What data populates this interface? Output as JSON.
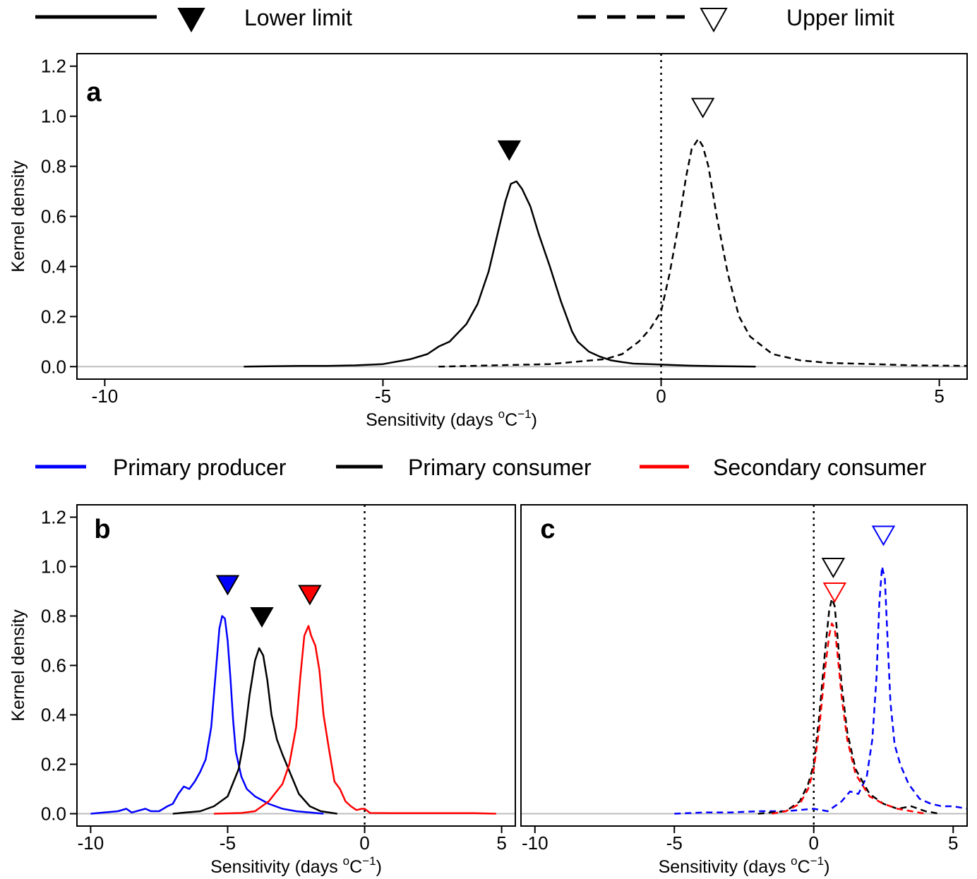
{
  "legend_top": {
    "lower_label": "Lower limit",
    "upper_label": "Upper limit"
  },
  "legend_mid": {
    "producer_label": "Primary producer",
    "consumer_label": "Primary consumer",
    "secondary_label": "Secondary consumer"
  },
  "colors": {
    "primary_producer": "#0000ff",
    "primary_consumer": "#000000",
    "secondary_consumer": "#ff0000",
    "zero_line": "#bebebe"
  },
  "axes": {
    "xlabel_main": "Sensitivity (days ",
    "xlabel_unit_sup_o": "o",
    "xlabel_unit_c": "C",
    "xlabel_unit_sup_exp": "−1",
    "xlabel_close": ")",
    "ylabel": "Kernel density"
  },
  "chart_data": [
    {
      "type": "line",
      "panel": "a",
      "xlim": [
        -10.5,
        5.5
      ],
      "ylim": [
        -0.05,
        1.25
      ],
      "x_ticks": [
        -10,
        -5,
        0,
        5
      ],
      "x_tick_labels": [
        "-10",
        "-5",
        "0",
        "5"
      ],
      "y_ticks": [
        0.0,
        0.2,
        0.4,
        0.6,
        0.8,
        1.0,
        1.2
      ],
      "y_tick_labels": [
        "0.0",
        "0.2",
        "0.4",
        "0.6",
        "0.8",
        "1.0",
        "1.2"
      ],
      "vline_x": 0,
      "series": [
        {
          "name": "Lower limit",
          "style": "solid",
          "color": "#000000",
          "x": [
            -7.5,
            -6.5,
            -6.0,
            -5.5,
            -5.0,
            -4.5,
            -4.2,
            -4.0,
            -3.8,
            -3.5,
            -3.3,
            -3.1,
            -2.95,
            -2.8,
            -2.7,
            -2.6,
            -2.5,
            -2.35,
            -2.2,
            -2.0,
            -1.8,
            -1.6,
            -1.5,
            -1.3,
            -1.1,
            -0.9,
            -0.7,
            -0.5,
            0.0,
            0.5,
            1.0,
            1.7
          ],
          "y": [
            0.0,
            0.003,
            0.003,
            0.005,
            0.01,
            0.03,
            0.05,
            0.08,
            0.1,
            0.17,
            0.25,
            0.38,
            0.52,
            0.66,
            0.73,
            0.74,
            0.71,
            0.64,
            0.53,
            0.4,
            0.26,
            0.14,
            0.1,
            0.06,
            0.04,
            0.025,
            0.018,
            0.012,
            0.008,
            0.004,
            0.002,
            0.0
          ]
        },
        {
          "name": "Upper limit",
          "style": "dashed",
          "color": "#000000",
          "x": [
            -4.0,
            -2.0,
            -1.0,
            -0.7,
            -0.4,
            -0.2,
            0.0,
            0.15,
            0.3,
            0.45,
            0.55,
            0.67,
            0.75,
            0.85,
            1.0,
            1.2,
            1.4,
            1.6,
            2.0,
            2.5,
            3.0,
            3.8,
            4.5,
            5.5
          ],
          "y": [
            0.0,
            0.01,
            0.03,
            0.05,
            0.1,
            0.15,
            0.22,
            0.37,
            0.55,
            0.76,
            0.87,
            0.91,
            0.88,
            0.8,
            0.6,
            0.37,
            0.2,
            0.12,
            0.05,
            0.025,
            0.015,
            0.01,
            0.005,
            0.003
          ]
        }
      ],
      "markers": [
        {
          "series": "Lower limit",
          "x": -2.73,
          "filled": true,
          "color": "#000000"
        },
        {
          "series": "Upper limit",
          "x": 0.75,
          "filled": false,
          "color": "#000000"
        }
      ]
    },
    {
      "type": "line",
      "panel": "b",
      "xlim": [
        -10.5,
        5.5
      ],
      "ylim": [
        -0.05,
        1.25
      ],
      "x_ticks": [
        -10,
        -5,
        0,
        5
      ],
      "x_tick_labels": [
        "-10",
        "-5",
        "0",
        "5"
      ],
      "y_ticks": [
        0.0,
        0.2,
        0.4,
        0.6,
        0.8,
        1.0,
        1.2
      ],
      "y_tick_labels": [
        "0.0",
        "0.2",
        "0.4",
        "0.6",
        "0.8",
        "1.0",
        "1.2"
      ],
      "vline_x": 0,
      "series": [
        {
          "name": "Primary producer",
          "style": "solid",
          "color": "#0000ff",
          "x": [
            -10.0,
            -9.0,
            -8.7,
            -8.5,
            -8.0,
            -7.8,
            -7.5,
            -7.2,
            -7.0,
            -6.8,
            -6.6,
            -6.4,
            -6.2,
            -6.0,
            -5.8,
            -5.6,
            -5.45,
            -5.3,
            -5.2,
            -5.1,
            -5.0,
            -4.9,
            -4.8,
            -4.7,
            -4.5,
            -4.3,
            -4.0,
            -3.5,
            -3.0,
            -2.5,
            -1.5
          ],
          "y": [
            0.0,
            0.01,
            0.02,
            0.005,
            0.02,
            0.01,
            0.01,
            0.03,
            0.04,
            0.08,
            0.11,
            0.1,
            0.13,
            0.17,
            0.22,
            0.35,
            0.55,
            0.75,
            0.8,
            0.79,
            0.7,
            0.55,
            0.38,
            0.25,
            0.15,
            0.1,
            0.07,
            0.04,
            0.02,
            0.01,
            0.0
          ]
        },
        {
          "name": "Primary consumer",
          "style": "solid",
          "color": "#000000",
          "x": [
            -7.0,
            -6.0,
            -5.5,
            -5.0,
            -4.6,
            -4.4,
            -4.2,
            -4.0,
            -3.85,
            -3.7,
            -3.55,
            -3.4,
            -3.2,
            -3.0,
            -2.7,
            -2.4,
            -2.0,
            -1.6,
            -1.0
          ],
          "y": [
            0.0,
            0.01,
            0.03,
            0.07,
            0.18,
            0.3,
            0.48,
            0.62,
            0.67,
            0.64,
            0.54,
            0.4,
            0.3,
            0.24,
            0.16,
            0.08,
            0.03,
            0.01,
            0.0
          ]
        },
        {
          "name": "Secondary consumer",
          "style": "solid",
          "color": "#ff0000",
          "x": [
            -5.5,
            -4.5,
            -4.0,
            -3.5,
            -3.0,
            -2.75,
            -2.5,
            -2.35,
            -2.2,
            -2.05,
            -1.95,
            -1.8,
            -1.65,
            -1.5,
            -1.3,
            -1.1,
            -0.9,
            -0.7,
            -0.5,
            -0.3,
            -0.1,
            0.0,
            0.2,
            1.0,
            2.0,
            3.0,
            4.0,
            4.8
          ],
          "y": [
            0.0,
            0.003,
            0.01,
            0.05,
            0.12,
            0.2,
            0.35,
            0.55,
            0.72,
            0.76,
            0.72,
            0.68,
            0.58,
            0.4,
            0.26,
            0.13,
            0.1,
            0.05,
            0.03,
            0.015,
            0.02,
            0.02,
            0.003,
            0.002,
            0.002,
            0.002,
            0.002,
            0.0
          ]
        }
      ],
      "markers": [
        {
          "series": "Primary producer",
          "x": -5.0,
          "filled": true,
          "color": "#0000ff"
        },
        {
          "series": "Primary consumer",
          "x": -3.75,
          "filled": true,
          "color": "#000000"
        },
        {
          "series": "Secondary consumer",
          "x": -2.0,
          "filled": true,
          "color": "#ff0000"
        }
      ]
    },
    {
      "type": "line",
      "panel": "c",
      "xlim": [
        -10.5,
        5.5
      ],
      "ylim": [
        -0.05,
        1.25
      ],
      "x_ticks": [
        -10,
        -5,
        0,
        5
      ],
      "x_tick_labels": [
        "-10",
        "-5",
        "0",
        "5"
      ],
      "y_ticks": [
        0.0,
        0.2,
        0.4,
        0.6,
        0.8,
        1.0,
        1.2
      ],
      "y_tick_labels": [
        "0.0",
        "0.2",
        "0.4",
        "0.6",
        "0.8",
        "1.0",
        "1.2"
      ],
      "vline_x": 0,
      "series": [
        {
          "name": "Primary producer",
          "style": "dashed",
          "color": "#0000ff",
          "x": [
            -5.0,
            -4.0,
            -3.0,
            -2.0,
            -1.0,
            0.0,
            0.5,
            1.0,
            1.3,
            1.6,
            1.9,
            2.1,
            2.25,
            2.35,
            2.45,
            2.55,
            2.65,
            2.75,
            2.9,
            3.1,
            3.4,
            3.8,
            4.2,
            4.6,
            5.0,
            5.5
          ],
          "y": [
            0.0,
            0.005,
            0.005,
            0.01,
            0.01,
            0.02,
            0.01,
            0.05,
            0.09,
            0.08,
            0.15,
            0.3,
            0.55,
            0.85,
            1.0,
            0.95,
            0.7,
            0.45,
            0.28,
            0.2,
            0.12,
            0.06,
            0.04,
            0.03,
            0.03,
            0.02
          ]
        },
        {
          "name": "Primary consumer",
          "style": "dashed",
          "color": "#000000",
          "x": [
            -2.0,
            -1.0,
            -0.5,
            -0.2,
            0.0,
            0.2,
            0.4,
            0.55,
            0.65,
            0.75,
            0.85,
            1.0,
            1.2,
            1.5,
            2.0,
            2.5,
            3.0,
            3.5,
            4.0,
            4.5
          ],
          "y": [
            0.0,
            0.01,
            0.05,
            0.12,
            0.2,
            0.4,
            0.65,
            0.82,
            0.87,
            0.84,
            0.72,
            0.52,
            0.33,
            0.18,
            0.08,
            0.04,
            0.02,
            0.03,
            0.01,
            0.0
          ]
        },
        {
          "name": "Secondary consumer",
          "style": "dashed",
          "color": "#ff0000",
          "x": [
            -1.5,
            -1.0,
            -0.5,
            -0.2,
            0.0,
            0.2,
            0.4,
            0.55,
            0.65,
            0.75,
            0.85,
            1.0,
            1.2,
            1.5,
            2.0,
            2.5,
            3.0,
            3.5,
            4.0
          ],
          "y": [
            0.0,
            0.01,
            0.04,
            0.1,
            0.18,
            0.35,
            0.58,
            0.72,
            0.77,
            0.75,
            0.65,
            0.47,
            0.3,
            0.16,
            0.07,
            0.04,
            0.02,
            0.01,
            0.0
          ]
        }
      ],
      "markers": [
        {
          "series": "Secondary consumer",
          "x": 0.75,
          "filled": false,
          "color": "#ff0000"
        },
        {
          "series": "Primary consumer",
          "x": 0.7,
          "filled": false,
          "color": "#000000"
        },
        {
          "series": "Primary producer",
          "x": 2.5,
          "filled": false,
          "color": "#0000ff"
        }
      ]
    }
  ]
}
